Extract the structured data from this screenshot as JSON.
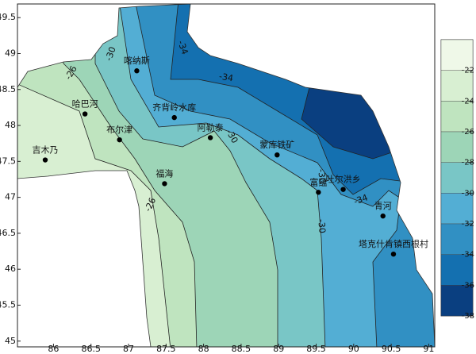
{
  "map": {
    "xlim": [
      85.52,
      91.08
    ],
    "ylim": [
      44.92,
      49.69
    ],
    "xticks": [
      86,
      86.5,
      87,
      87.5,
      88,
      88.5,
      89,
      89.5,
      90,
      90.5,
      91
    ],
    "yticks": [
      45,
      45.5,
      46,
      46.5,
      47,
      47.5,
      48,
      48.5,
      49,
      49.5
    ],
    "stations": [
      {
        "name": "喀纳斯",
        "lon": 87.11,
        "lat": 48.76
      },
      {
        "name": "哈巴河",
        "lon": 86.42,
        "lat": 48.16
      },
      {
        "name": "齐背岭水库",
        "lon": 87.61,
        "lat": 48.11
      },
      {
        "name": "布尔津",
        "lon": 86.88,
        "lat": 47.8
      },
      {
        "name": "阿勒泰",
        "lon": 88.09,
        "lat": 47.83
      },
      {
        "name": "吉木乃",
        "lon": 85.89,
        "lat": 47.52
      },
      {
        "name": "福海",
        "lon": 87.48,
        "lat": 47.19
      },
      {
        "name": "蒙库铁矿",
        "lon": 88.98,
        "lat": 47.59
      },
      {
        "name": "富蕴",
        "lon": 89.53,
        "lat": 47.07
      },
      {
        "name": "吐尔洪乡",
        "lon": 89.86,
        "lat": 47.11
      },
      {
        "name": "青河",
        "lon": 90.39,
        "lat": 46.74
      },
      {
        "name": "塔克什肯镇西根村",
        "lon": 90.53,
        "lat": 46.21
      }
    ],
    "contour_labels": [
      -34,
      -30,
      -26,
      -34,
      -30,
      -26,
      -30,
      -34,
      -30
    ],
    "colorbar": {
      "lim": [
        -38,
        -20
      ],
      "ticks": [
        -22,
        -24,
        -26,
        -28,
        -30,
        -32,
        -34,
        -36,
        -38
      ],
      "colors": [
        "#eff8e8",
        "#d8efd2",
        "#bfe4bf",
        "#9dd5b7",
        "#79c6c6",
        "#53aed4",
        "#3190c3",
        "#1470b0",
        "#0a3f80"
      ]
    }
  }
}
